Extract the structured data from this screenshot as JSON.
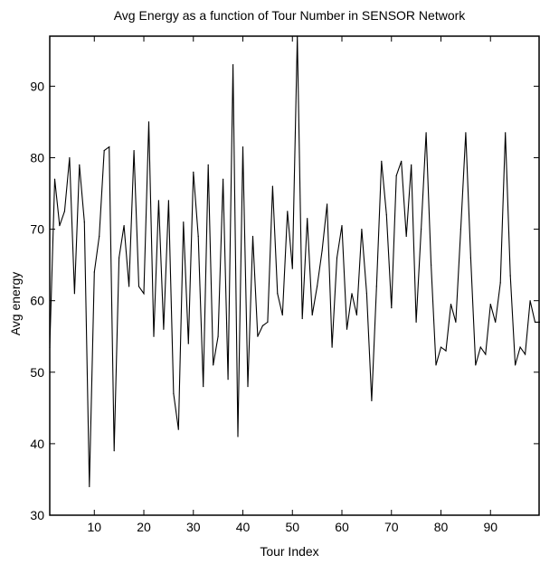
{
  "chart_data": {
    "type": "line",
    "title": "Avg Energy as a function of Tour Number in SENSOR Network",
    "xlabel": "Tour Index",
    "ylabel": "Avg energy",
    "xlim": [
      1,
      100
    ],
    "ylim": [
      30,
      97
    ],
    "x_ticks": [
      10,
      20,
      30,
      40,
      50,
      60,
      70,
      80,
      90
    ],
    "y_ticks": [
      30,
      40,
      50,
      60,
      70,
      80,
      90
    ],
    "grid": false,
    "series": [
      {
        "color": "#000000",
        "x": [
          1,
          2,
          3,
          4,
          5,
          6,
          7,
          8,
          9,
          10,
          11,
          12,
          13,
          14,
          15,
          16,
          17,
          18,
          19,
          20,
          21,
          22,
          23,
          24,
          25,
          26,
          27,
          28,
          29,
          30,
          31,
          32,
          33,
          34,
          35,
          36,
          37,
          38,
          39,
          40,
          41,
          42,
          43,
          44,
          45,
          46,
          47,
          48,
          49,
          50,
          51,
          52,
          53,
          54,
          55,
          56,
          57,
          58,
          59,
          60,
          61,
          62,
          63,
          64,
          65,
          66,
          67,
          68,
          69,
          70,
          71,
          72,
          73,
          74,
          75,
          76,
          77,
          78,
          79,
          80,
          81,
          82,
          83,
          84,
          85,
          86,
          87,
          88,
          89,
          90,
          91,
          92,
          93,
          94,
          95,
          96,
          97,
          98,
          99,
          100
        ],
        "values": [
          53.5,
          77,
          70.5,
          72.5,
          80,
          61,
          79,
          71,
          34,
          64,
          69,
          81,
          81.5,
          39,
          66,
          70.5,
          62,
          81,
          62,
          61,
          85,
          55,
          74,
          56,
          74,
          47,
          42,
          71,
          54,
          78,
          69,
          48,
          79,
          51,
          55,
          77,
          49,
          93,
          41,
          81.5,
          48,
          69,
          55,
          56.5,
          57,
          76,
          61,
          58,
          72.5,
          64.5,
          97,
          57.5,
          71.5,
          58,
          62,
          67,
          73.5,
          53.5,
          66,
          70.5,
          56,
          61,
          58,
          70,
          61,
          46,
          62,
          79.5,
          72,
          59,
          77.5,
          79.5,
          69,
          79,
          57,
          70,
          83.5,
          65,
          51,
          53.5,
          53,
          59.5,
          57,
          70,
          83.5,
          66,
          51,
          53.5,
          52.5,
          59.5,
          57,
          62.5,
          83.5,
          63.5,
          51,
          53.5,
          52.5,
          60,
          57,
          57
        ]
      }
    ]
  }
}
